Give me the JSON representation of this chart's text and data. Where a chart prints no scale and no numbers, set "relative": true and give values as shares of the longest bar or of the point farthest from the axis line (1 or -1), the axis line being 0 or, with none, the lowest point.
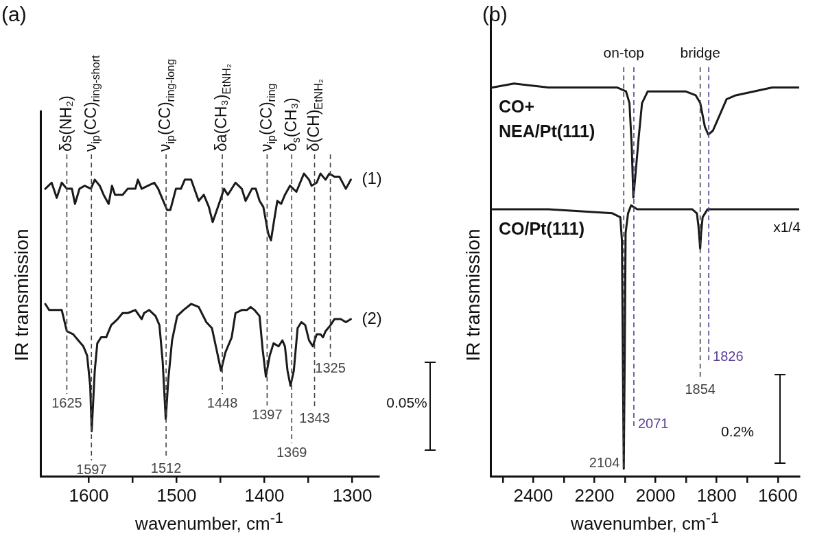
{
  "chart_data": [
    {
      "type": "line",
      "title": "(a)",
      "xlabel": "wavenumber, cm$^{-1}$",
      "ylabel": "IR transmission",
      "relative": true,
      "xlim": [
        1655,
        1270
      ],
      "xticks": [
        1600,
        {
          "value": 1550,
          "label": null
        },
        1500,
        {
          "value": 1450,
          "label": null
        },
        1400,
        {
          "value": 1350,
          "label": null
        },
        1300
      ],
      "series": [
        {
          "name": "(1)",
          "color": "#1a1a1a",
          "x": [
            1649.5,
            1642.3,
            1636.5,
            1630.8,
            1625.0,
            1619.2,
            1615.7,
            1610.6,
            1604.8,
            1597.6,
            1593.2,
            1587.5,
            1583.1,
            1577.4,
            1573.6,
            1570.1,
            1561.5,
            1555.7,
            1547.0,
            1544.1,
            1539.8,
            1532.6,
            1525.4,
            1521.0,
            1516.7,
            1510.9,
            1507.2,
            1500.8,
            1495.1,
            1490.7,
            1483.5,
            1474.9,
            1469.1,
            1463.3,
            1459.0,
            1451.8,
            1446.0,
            1441.7,
            1433.0,
            1425.8,
            1421.5,
            1414.3,
            1409.9,
            1405.6,
            1401.3,
            1396.9,
            1395.5,
            1392.6,
            1388.8,
            1385.4,
            1381.0,
            1376.7,
            1371.0,
            1363.7,
            1355.1,
            1349.3,
            1346.4,
            1340.6,
            1336.3,
            1330.5,
            1326.2,
            1320.4,
            1314.7,
            1307.4,
            1301.7
          ],
          "values": [
            0.95,
            0.97,
            0.92,
            0.97,
            0.95,
            0.95,
            0.9,
            0.95,
            0.96,
            0.95,
            0.98,
            0.96,
            0.93,
            0.9,
            0.96,
            0.93,
            0.93,
            0.95,
            0.95,
            0.98,
            0.95,
            0.96,
            0.97,
            0.95,
            0.92,
            0.88,
            0.88,
            0.95,
            0.95,
            0.98,
            0.98,
            0.91,
            0.93,
            0.89,
            0.84,
            0.9,
            0.95,
            0.93,
            0.97,
            0.95,
            0.91,
            0.95,
            0.95,
            0.91,
            0.89,
            0.82,
            0.8,
            0.78,
            0.85,
            0.91,
            0.9,
            0.93,
            0.96,
            0.94,
            1.0,
            0.98,
            0.96,
            0.97,
            1.0,
            0.98,
            1.0,
            0.99,
            0.99,
            0.95,
            0.98
          ]
        },
        {
          "name": "(2)",
          "color": "#1a1a1a",
          "x": [
            1649.5,
            1645.2,
            1639.4,
            1633.6,
            1630.8,
            1625.0,
            1617.8,
            1612.0,
            1606.2,
            1601.9,
            1598.4,
            1596.7,
            1593.2,
            1590.3,
            1586.0,
            1580.2,
            1574.5,
            1567.2,
            1561.5,
            1555.7,
            1547.0,
            1539.8,
            1537.0,
            1531.2,
            1524.0,
            1519.6,
            1515.9,
            1512.4,
            1509.5,
            1505.2,
            1499.4,
            1492.2,
            1483.5,
            1474.9,
            1466.2,
            1459.8,
            1454.6,
            1449.5,
            1444.5,
            1437.3,
            1433.0,
            1425.8,
            1420.0,
            1415.7,
            1411.4,
            1405.6,
            1402.1,
            1398.4,
            1394.0,
            1389.7,
            1383.9,
            1379.6,
            1376.7,
            1373.8,
            1370.4,
            1366.6,
            1362.3,
            1358.0,
            1353.6,
            1349.3,
            1345.0,
            1340.6,
            1336.3,
            1333.4,
            1330.5,
            1324.8,
            1320.4,
            1313.2,
            1307.4,
            1301.7
          ],
          "values": [
            0.57,
            0.55,
            0.55,
            0.55,
            0.55,
            0.48,
            0.47,
            0.45,
            0.43,
            0.4,
            0.3,
            0.15,
            0.35,
            0.44,
            0.46,
            0.46,
            0.5,
            0.52,
            0.54,
            0.54,
            0.55,
            0.52,
            0.54,
            0.55,
            0.53,
            0.5,
            0.38,
            0.19,
            0.32,
            0.45,
            0.53,
            0.55,
            0.57,
            0.56,
            0.51,
            0.49,
            0.42,
            0.35,
            0.41,
            0.46,
            0.54,
            0.55,
            0.55,
            0.56,
            0.55,
            0.53,
            0.42,
            0.33,
            0.4,
            0.44,
            0.43,
            0.45,
            0.43,
            0.35,
            0.3,
            0.35,
            0.49,
            0.51,
            0.5,
            0.45,
            0.43,
            0.47,
            0.47,
            0.46,
            0.48,
            0.5,
            0.52,
            0.52,
            0.51,
            0.52
          ]
        }
      ],
      "ref_lines": [
        {
          "axis": "x",
          "value": 1625,
          "label": "1625",
          "color": "#444444",
          "line_style": "dashed"
        },
        {
          "axis": "x",
          "value": 1597,
          "label": "1597",
          "color": "#444444",
          "line_style": "dashed"
        },
        {
          "axis": "x",
          "value": 1512,
          "label": "1512",
          "color": "#444444",
          "line_style": "dashed"
        },
        {
          "axis": "x",
          "value": 1448,
          "label": "1448",
          "color": "#444444",
          "line_style": "dashed"
        },
        {
          "axis": "x",
          "value": 1397,
          "label": "1397",
          "color": "#444444",
          "line_style": "dashed"
        },
        {
          "axis": "x",
          "value": 1369,
          "label": "1369",
          "color": "#444444",
          "line_style": "dashed"
        },
        {
          "axis": "x",
          "value": 1343,
          "label": "1343",
          "color": "#444444",
          "line_style": "dashed"
        },
        {
          "axis": "x",
          "value": 1325,
          "label": "1325",
          "color": "#444444",
          "line_style": "dashed"
        }
      ],
      "annotations": [
        "δs(NH₂)",
        "ν$_{ip}$(CC)$_{ring-short}$",
        "ν$_{ip}$(CC)$_{ring-long}$",
        "δa(CH₃)$_{EtNH₂}$",
        "ν$_{ip}$(CC)$_{ring}$",
        "δ$_{s}$(CH₃)",
        "δ(CH)$_{EtNH₂}$",
        "0.05%"
      ]
    },
    {
      "type": "line",
      "title": "(b)",
      "xlabel": "wavenumber, cm$^{-1}$",
      "ylabel": "IR transmission",
      "relative": true,
      "xlim": [
        2540,
        1530
      ],
      "xticks": [
        {
          "value": 2500,
          "label": null
        },
        2400,
        {
          "value": 2300,
          "label": null
        },
        2200,
        {
          "value": 2100,
          "label": null
        },
        2000,
        {
          "value": 1900,
          "label": null
        },
        1800,
        {
          "value": 1700,
          "label": null
        },
        1600
      ],
      "series": [
        {
          "name": "CO+\nNEA/Pt(111)",
          "color": "#1a1a1a",
          "x": [
            2533.8,
            2462.8,
            2350.7,
            2238.6,
            2126.5,
            2096.6,
            2085.4,
            2077.9,
            2072.7,
            2066.7,
            2055.5,
            2044.3,
            2025.6,
            1977.0,
            1902.2,
            1868.6,
            1853.7,
            1838.7,
            1827.5,
            1812.5,
            1790.1,
            1767.7,
            1737.8,
            1678.0,
            1618.2,
            1532.3
          ],
          "values": [
            0.99,
            1.0,
            0.99,
            0.99,
            0.99,
            0.98,
            0.95,
            0.84,
            0.71,
            0.76,
            0.86,
            0.95,
            0.98,
            0.98,
            0.98,
            0.97,
            0.95,
            0.89,
            0.87,
            0.88,
            0.92,
            0.96,
            0.97,
            0.98,
            0.99,
            0.99
          ]
        },
        {
          "name": "CO/Pt(111)",
          "color": "#1a1a1a",
          "x": [
            2533.8,
            2350.7,
            2141.4,
            2115.3,
            2110,
            2107,
            2104,
            2101,
            2098,
            2090,
            2080,
            2060,
            1977,
            1879.8,
            1864.9,
            1860,
            1857,
            1854,
            1851,
            1846,
            1830,
            1700,
            1600,
            1532
          ],
          "values": [
            0.68,
            0.68,
            0.67,
            0.66,
            0.6,
            0.3,
            0.02,
            0.3,
            0.62,
            0.67,
            0.69,
            0.68,
            0.68,
            0.68,
            0.67,
            0.64,
            0.61,
            0.58,
            0.62,
            0.66,
            0.68,
            0.68,
            0.68,
            0.68
          ]
        }
      ],
      "ref_lines": [
        {
          "axis": "x",
          "value": 2104,
          "label": "2104",
          "color": "#444444",
          "line_style": "dashed"
        },
        {
          "axis": "x",
          "value": 2071,
          "label": "2071",
          "color": "#5b3e96",
          "line_style": "dashed"
        },
        {
          "axis": "x",
          "value": 1854,
          "label": "1854",
          "color": "#444444",
          "line_style": "dashed"
        },
        {
          "axis": "x",
          "value": 1826,
          "label": "1826",
          "color": "#5b3e96",
          "line_style": "dashed"
        }
      ],
      "annotations": [
        "on-top",
        "bridge",
        "x1/4",
        "0.2%"
      ]
    }
  ]
}
